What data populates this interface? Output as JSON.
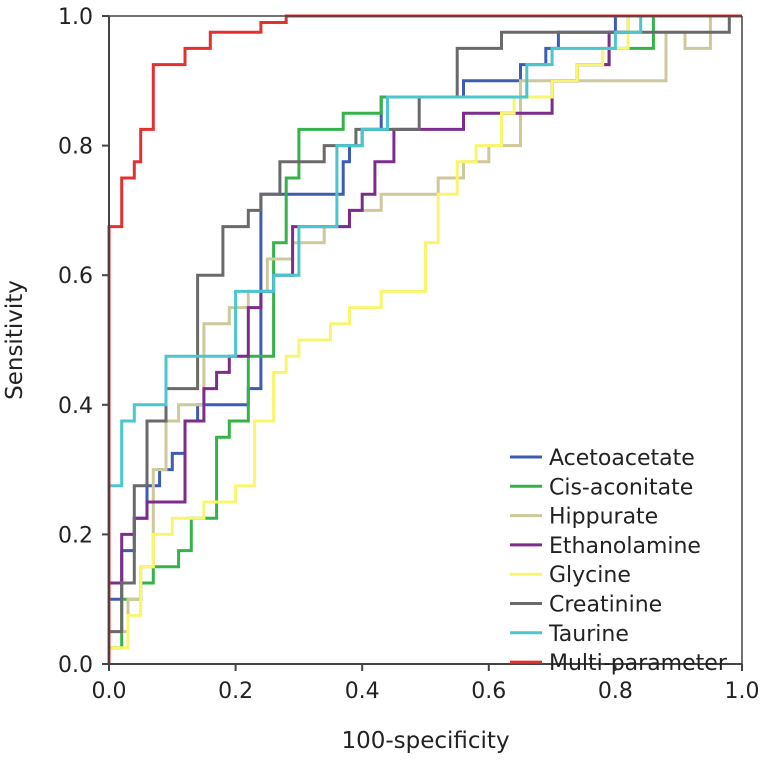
{
  "chart_data": {
    "type": "line",
    "title": "",
    "xlabel": "100-specificity",
    "ylabel": "Sensitivity",
    "xlim": [
      0,
      1
    ],
    "ylim": [
      0,
      1
    ],
    "x_ticks": [
      "0.0",
      "0.2",
      "0.4",
      "0.6",
      "0.8",
      "1.0"
    ],
    "y_ticks": [
      "0.0",
      "0.2",
      "0.4",
      "0.6",
      "0.8",
      "1.0"
    ],
    "legend_position": "bottom-right",
    "series": [
      {
        "name": "Acetoacetate",
        "color": "#3f5cb5",
        "x": [
          0,
          0,
          0.02,
          0.02,
          0.04,
          0.04,
          0.06,
          0.06,
          0.08,
          0.08,
          0.1,
          0.1,
          0.12,
          0.12,
          0.14,
          0.14,
          0.16,
          0.16,
          0.18,
          0.18,
          0.22,
          0.22,
          0.24,
          0.24,
          0.37,
          0.37,
          0.38,
          0.38,
          0.4,
          0.4,
          0.43,
          0.43,
          0.56,
          0.56,
          0.6,
          0.6,
          0.65,
          0.65,
          0.69,
          0.69,
          0.71,
          0.71,
          0.73,
          0.73,
          0.8,
          0.8,
          1.0
        ],
        "y": [
          0,
          0.1,
          0.1,
          0.175,
          0.175,
          0.225,
          0.225,
          0.275,
          0.275,
          0.3,
          0.3,
          0.325,
          0.325,
          0.375,
          0.375,
          0.4,
          0.4,
          0.4,
          0.4,
          0.4,
          0.4,
          0.425,
          0.425,
          0.725,
          0.725,
          0.775,
          0.775,
          0.8,
          0.8,
          0.825,
          0.825,
          0.875,
          0.875,
          0.9,
          0.9,
          0.9,
          0.9,
          0.925,
          0.925,
          0.95,
          0.95,
          0.975,
          0.975,
          0.975,
          0.975,
          1.0,
          1.0
        ]
      },
      {
        "name": "Cis-aconitate",
        "color": "#35b24a",
        "x": [
          0,
          0,
          0.02,
          0.02,
          0.05,
          0.05,
          0.07,
          0.07,
          0.11,
          0.11,
          0.13,
          0.13,
          0.17,
          0.17,
          0.19,
          0.19,
          0.22,
          0.22,
          0.26,
          0.26,
          0.28,
          0.28,
          0.3,
          0.3,
          0.33,
          0.33,
          0.37,
          0.37,
          0.4,
          0.4,
          0.43,
          0.43,
          0.55,
          0.55,
          0.62,
          0.62,
          0.66,
          0.66,
          0.7,
          0.7,
          0.74,
          0.74,
          0.79,
          0.79,
          0.86,
          0.86,
          1.0
        ],
        "y": [
          0,
          0.025,
          0.025,
          0.1,
          0.1,
          0.125,
          0.125,
          0.15,
          0.15,
          0.175,
          0.175,
          0.225,
          0.225,
          0.35,
          0.35,
          0.375,
          0.375,
          0.475,
          0.475,
          0.65,
          0.65,
          0.75,
          0.75,
          0.825,
          0.825,
          0.825,
          0.825,
          0.85,
          0.85,
          0.85,
          0.85,
          0.875,
          0.875,
          0.875,
          0.875,
          0.875,
          0.875,
          0.875,
          0.875,
          0.9,
          0.9,
          0.925,
          0.925,
          0.95,
          0.95,
          1.0,
          1.0
        ]
      },
      {
        "name": "Hippurate",
        "color": "#cdc99a",
        "x": [
          0,
          0,
          0.03,
          0.03,
          0.05,
          0.05,
          0.07,
          0.07,
          0.09,
          0.09,
          0.11,
          0.11,
          0.15,
          0.15,
          0.19,
          0.19,
          0.22,
          0.22,
          0.25,
          0.25,
          0.29,
          0.29,
          0.34,
          0.34,
          0.38,
          0.38,
          0.43,
          0.43,
          0.52,
          0.52,
          0.56,
          0.56,
          0.6,
          0.6,
          0.65,
          0.65,
          0.72,
          0.72,
          0.77,
          0.77,
          0.81,
          0.81,
          0.88,
          0.88,
          0.91,
          0.91,
          0.95,
          0.95,
          1.0
        ],
        "y": [
          0,
          0.05,
          0.05,
          0.1,
          0.1,
          0.15,
          0.15,
          0.3,
          0.3,
          0.375,
          0.375,
          0.4,
          0.4,
          0.525,
          0.525,
          0.55,
          0.55,
          0.575,
          0.575,
          0.625,
          0.625,
          0.65,
          0.65,
          0.675,
          0.675,
          0.7,
          0.7,
          0.725,
          0.725,
          0.75,
          0.75,
          0.775,
          0.775,
          0.8,
          0.8,
          0.9,
          0.9,
          0.9,
          0.9,
          0.9,
          0.9,
          0.9,
          0.9,
          0.975,
          0.975,
          0.95,
          0.95,
          1.0,
          1.0
        ]
      },
      {
        "name": "Ethanolamine",
        "color": "#7d2c8c",
        "x": [
          0,
          0,
          0.02,
          0.02,
          0.04,
          0.04,
          0.06,
          0.06,
          0.09,
          0.09,
          0.12,
          0.12,
          0.15,
          0.15,
          0.17,
          0.17,
          0.19,
          0.19,
          0.22,
          0.22,
          0.24,
          0.24,
          0.26,
          0.26,
          0.29,
          0.29,
          0.34,
          0.34,
          0.38,
          0.38,
          0.4,
          0.4,
          0.42,
          0.42,
          0.45,
          0.45,
          0.49,
          0.49,
          0.56,
          0.56,
          0.6,
          0.6,
          0.65,
          0.65,
          0.7,
          0.7,
          0.74,
          0.74,
          0.79,
          0.79,
          0.82,
          0.82,
          1.0
        ],
        "y": [
          0,
          0.125,
          0.125,
          0.2,
          0.2,
          0.225,
          0.225,
          0.25,
          0.25,
          0.25,
          0.25,
          0.375,
          0.375,
          0.425,
          0.425,
          0.45,
          0.45,
          0.475,
          0.475,
          0.55,
          0.55,
          0.575,
          0.575,
          0.6,
          0.6,
          0.675,
          0.675,
          0.675,
          0.675,
          0.7,
          0.7,
          0.725,
          0.725,
          0.775,
          0.775,
          0.825,
          0.825,
          0.825,
          0.825,
          0.85,
          0.85,
          0.85,
          0.85,
          0.85,
          0.85,
          0.9,
          0.9,
          0.925,
          0.925,
          0.975,
          0.975,
          1.0,
          1.0
        ]
      },
      {
        "name": "Glycine",
        "color": "#f9f66e",
        "x": [
          0,
          0,
          0.03,
          0.03,
          0.05,
          0.05,
          0.07,
          0.07,
          0.1,
          0.1,
          0.15,
          0.15,
          0.17,
          0.17,
          0.2,
          0.2,
          0.23,
          0.23,
          0.26,
          0.26,
          0.28,
          0.28,
          0.3,
          0.3,
          0.35,
          0.35,
          0.38,
          0.38,
          0.43,
          0.43,
          0.5,
          0.5,
          0.52,
          0.52,
          0.55,
          0.55,
          0.58,
          0.58,
          0.62,
          0.62,
          0.64,
          0.64,
          0.66,
          0.66,
          0.7,
          0.7,
          0.74,
          0.74,
          0.78,
          0.78,
          0.82,
          0.82,
          1.0
        ],
        "y": [
          0,
          0.025,
          0.025,
          0.075,
          0.075,
          0.15,
          0.15,
          0.2,
          0.2,
          0.225,
          0.225,
          0.25,
          0.25,
          0.25,
          0.25,
          0.275,
          0.275,
          0.375,
          0.375,
          0.45,
          0.45,
          0.475,
          0.475,
          0.5,
          0.5,
          0.525,
          0.525,
          0.55,
          0.55,
          0.575,
          0.575,
          0.65,
          0.65,
          0.725,
          0.725,
          0.775,
          0.775,
          0.8,
          0.8,
          0.85,
          0.85,
          0.875,
          0.875,
          0.875,
          0.875,
          0.9,
          0.9,
          0.925,
          0.925,
          0.95,
          0.95,
          1.0,
          1.0
        ]
      },
      {
        "name": "Creatinine",
        "color": "#6a6a6a",
        "x": [
          0,
          0,
          0.02,
          0.02,
          0.04,
          0.04,
          0.06,
          0.06,
          0.09,
          0.09,
          0.14,
          0.14,
          0.18,
          0.18,
          0.22,
          0.22,
          0.24,
          0.24,
          0.27,
          0.27,
          0.32,
          0.32,
          0.34,
          0.34,
          0.36,
          0.36,
          0.39,
          0.39,
          0.42,
          0.42,
          0.49,
          0.49,
          0.55,
          0.55,
          0.62,
          0.62,
          0.66,
          0.66,
          0.93,
          0.93,
          0.98,
          0.98,
          1.0
        ],
        "y": [
          0,
          0.05,
          0.05,
          0.125,
          0.125,
          0.275,
          0.275,
          0.375,
          0.375,
          0.425,
          0.425,
          0.6,
          0.6,
          0.675,
          0.675,
          0.7,
          0.7,
          0.725,
          0.725,
          0.775,
          0.775,
          0.775,
          0.775,
          0.8,
          0.8,
          0.8,
          0.8,
          0.825,
          0.825,
          0.825,
          0.825,
          0.875,
          0.875,
          0.95,
          0.95,
          0.975,
          0.975,
          0.975,
          0.975,
          0.975,
          0.975,
          1.0,
          1.0
        ]
      },
      {
        "name": "Taurine",
        "color": "#4bc6cc",
        "x": [
          0,
          0,
          0.02,
          0.02,
          0.04,
          0.04,
          0.06,
          0.06,
          0.09,
          0.09,
          0.14,
          0.14,
          0.2,
          0.2,
          0.23,
          0.23,
          0.26,
          0.26,
          0.3,
          0.3,
          0.36,
          0.36,
          0.4,
          0.4,
          0.44,
          0.44,
          0.57,
          0.57,
          0.62,
          0.62,
          0.66,
          0.66,
          0.7,
          0.7,
          0.76,
          0.76,
          0.8,
          0.8,
          0.84,
          0.84,
          0.93,
          0.93,
          1.0
        ],
        "y": [
          0,
          0.275,
          0.275,
          0.375,
          0.375,
          0.4,
          0.4,
          0.4,
          0.4,
          0.475,
          0.475,
          0.475,
          0.475,
          0.575,
          0.575,
          0.575,
          0.575,
          0.6,
          0.6,
          0.675,
          0.675,
          0.8,
          0.8,
          0.825,
          0.825,
          0.875,
          0.875,
          0.875,
          0.875,
          0.875,
          0.875,
          0.925,
          0.925,
          0.95,
          0.95,
          0.95,
          0.95,
          0.975,
          0.975,
          1.0,
          1.0,
          1.0,
          1.0
        ]
      },
      {
        "name": "Multi-parameter",
        "color": "#e53030",
        "x": [
          0,
          0,
          0.02,
          0.02,
          0.04,
          0.04,
          0.05,
          0.05,
          0.07,
          0.07,
          0.09,
          0.09,
          0.12,
          0.12,
          0.16,
          0.16,
          0.2,
          0.2,
          0.24,
          0.24,
          0.28,
          0.28,
          0.31,
          0.31,
          1.0
        ],
        "y": [
          0,
          0.675,
          0.675,
          0.75,
          0.75,
          0.775,
          0.775,
          0.825,
          0.825,
          0.925,
          0.925,
          0.925,
          0.925,
          0.95,
          0.95,
          0.975,
          0.975,
          0.975,
          0.975,
          0.99,
          0.99,
          1.0,
          1.0,
          1.0,
          1.0
        ]
      }
    ]
  }
}
